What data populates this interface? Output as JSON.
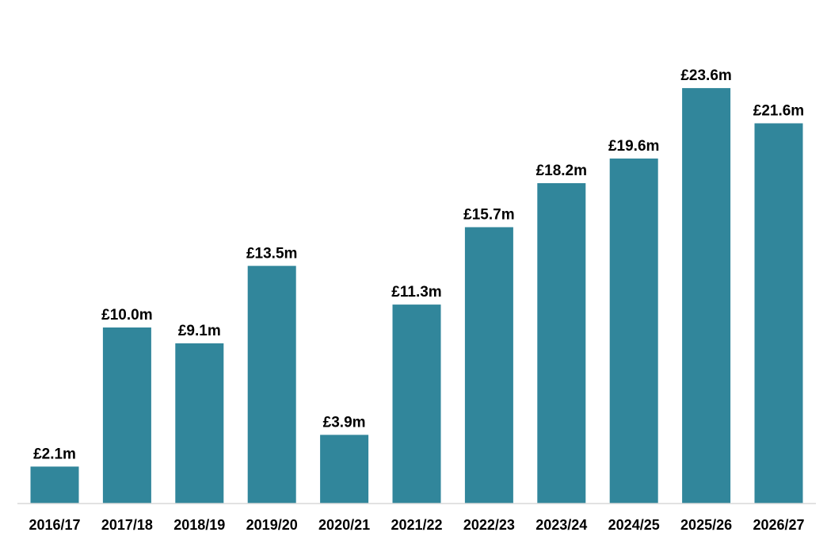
{
  "chart_data": {
    "type": "bar",
    "categories": [
      "2016/17",
      "2017/18",
      "2018/19",
      "2019/20",
      "2020/21",
      "2021/22",
      "2022/23",
      "2023/24",
      "2024/25",
      "2025/26",
      "2026/27"
    ],
    "values": [
      2.1,
      10.0,
      9.1,
      13.5,
      3.9,
      11.3,
      15.7,
      18.2,
      19.6,
      23.6,
      21.6
    ],
    "data_labels": [
      "£2.1m",
      "£10.0m",
      "£9.1m",
      "£13.5m",
      "£3.9m",
      "£11.3m",
      "£15.7m",
      "£18.2m",
      "£19.6m",
      "£23.6m",
      "£21.6m"
    ],
    "title": "",
    "xlabel": "",
    "ylabel": "",
    "ylim": [
      0,
      27
    ],
    "grid": false,
    "legend": "none",
    "bar_color": "#31869b",
    "axis_color": "#d9d9d9"
  }
}
